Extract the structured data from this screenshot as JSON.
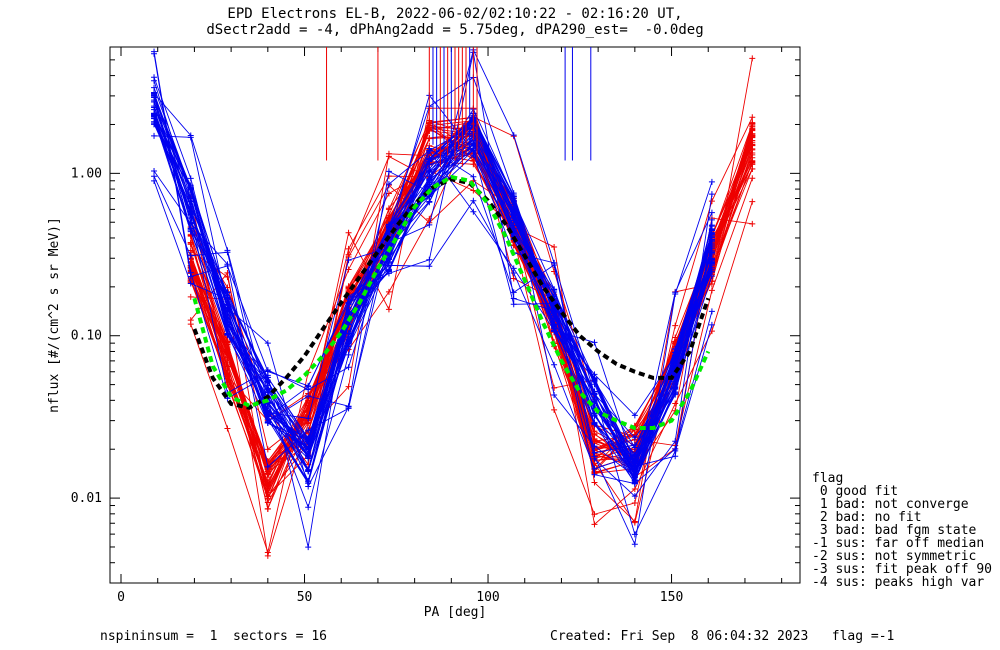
{
  "title_line1": "EPD Electrons EL-B, 2022-06-02/02:10:22 - 02:16:20 UT,",
  "title_line2": "dSectr2add = -4, dPhAng2add = 5.75deg, dPA290_est=  -0.0deg",
  "footer_left": "nspininsum =  1  sectors = 16",
  "footer_right": "Created: Fri Sep  8 06:04:32 2023   flag =-1",
  "legend": {
    "title": "flag",
    "items": [
      " 0 good fit",
      " 1 bad: not converge",
      " 2 bad: no fit",
      " 3 bad: bad fgm state",
      "-1 sus: far off median",
      "-2 sus: not symmetric",
      "-3 sus: fit peak off 90",
      "-4 sus: peaks high var"
    ]
  },
  "colors": {
    "red": "#ee0000",
    "blue": "#0000ee",
    "black": "#000000",
    "green": "#00ee00"
  },
  "chart_data": {
    "type": "line",
    "xlabel": "PA [deg]",
    "ylabel": "nflux [#/(cm^2 s sr MeV)]",
    "xlim": [
      -3,
      185
    ],
    "ylim": [
      0.003,
      6.0
    ],
    "ylog": true,
    "x_ticks": [
      0,
      50,
      100,
      150
    ],
    "y_ticks": [
      0.01,
      0.1,
      1.0
    ],
    "y_tick_labels": [
      "0.01",
      "0.10",
      "1.00"
    ],
    "grid": false,
    "series": [
      {
        "color": "red",
        "style": "line+plus",
        "count": 40,
        "x": [
          19,
          29,
          40,
          51,
          62,
          73,
          84,
          96,
          107,
          118,
          129,
          140,
          151,
          161,
          172
        ],
        "y": [
          0.3,
          0.07,
          0.012,
          0.03,
          0.15,
          0.45,
          1.5,
          1.6,
          0.5,
          0.12,
          0.02,
          0.02,
          0.07,
          0.3,
          1.5
        ]
      },
      {
        "color": "blue",
        "style": "line+plus",
        "count": 40,
        "x": [
          9,
          19,
          29,
          40,
          51,
          62,
          73,
          84,
          96,
          107,
          118,
          129,
          140,
          151,
          161
        ],
        "y": [
          2.7,
          0.6,
          0.14,
          0.04,
          0.017,
          0.12,
          0.35,
          0.9,
          1.8,
          0.55,
          0.15,
          0.04,
          0.017,
          0.06,
          0.35
        ]
      },
      {
        "color": "black",
        "style": "dashed-fit",
        "x": [
          20,
          25,
          30,
          35,
          40,
          45,
          50,
          55,
          60,
          65,
          70,
          75,
          80,
          85,
          90,
          95,
          100,
          105,
          110,
          115,
          120,
          125,
          130,
          135,
          140,
          145,
          150,
          155,
          160
        ],
        "y": [
          0.11,
          0.055,
          0.038,
          0.036,
          0.042,
          0.055,
          0.075,
          0.11,
          0.16,
          0.23,
          0.33,
          0.47,
          0.65,
          0.82,
          0.92,
          0.87,
          0.68,
          0.48,
          0.31,
          0.2,
          0.14,
          0.1,
          0.08,
          0.067,
          0.06,
          0.055,
          0.055,
          0.08,
          0.17
        ]
      },
      {
        "color": "green",
        "style": "dashed-fit",
        "x": [
          20,
          25,
          30,
          35,
          40,
          45,
          50,
          55,
          60,
          65,
          70,
          75,
          80,
          85,
          90,
          95,
          100,
          105,
          110,
          115,
          120,
          125,
          130,
          135,
          140,
          145,
          150,
          155,
          160
        ],
        "y": [
          0.17,
          0.065,
          0.042,
          0.037,
          0.04,
          0.046,
          0.057,
          0.075,
          0.105,
          0.16,
          0.26,
          0.4,
          0.62,
          0.82,
          0.95,
          0.9,
          0.65,
          0.4,
          0.22,
          0.12,
          0.07,
          0.045,
          0.034,
          0.03,
          0.027,
          0.027,
          0.03,
          0.045,
          0.08
        ]
      }
    ]
  }
}
